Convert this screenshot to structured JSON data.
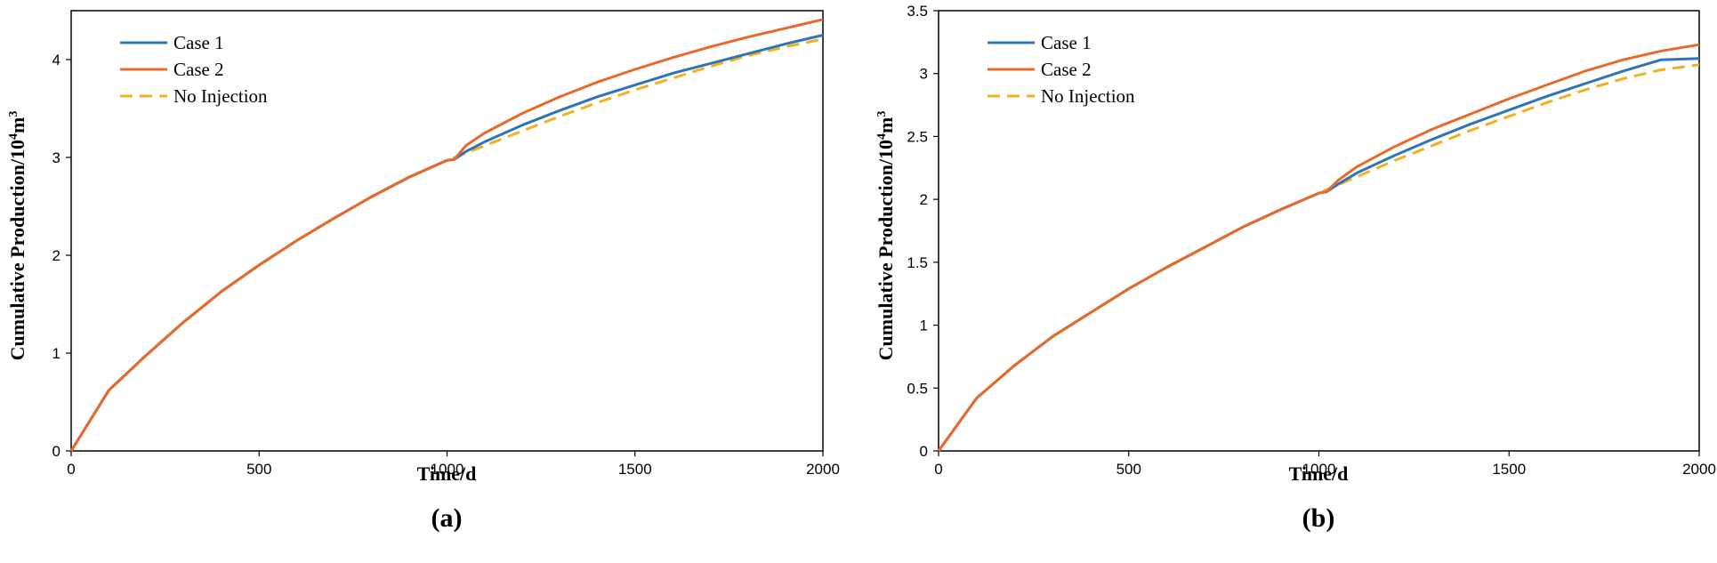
{
  "chart_data": [
    {
      "type": "line",
      "panel_label": "(a)",
      "xlabel": "Time/d",
      "ylabel_main": "Cumulative Production/10",
      "ylabel_sup1": "4",
      "ylabel_mid": "m",
      "ylabel_sup2": "3",
      "xlim": [
        0,
        2000
      ],
      "ylim": [
        0,
        4.5
      ],
      "xticks": [
        0,
        500,
        1000,
        1500,
        2000
      ],
      "xtick_labels": [
        "0",
        "500",
        "1000",
        "1500",
        "2000"
      ],
      "yticks": [
        0,
        1,
        2,
        3,
        4
      ],
      "ytick_labels": [
        "0",
        "1",
        "2",
        "3",
        "4"
      ],
      "grid": false,
      "legend_position": "top-left",
      "series": [
        {
          "name": "Case 1",
          "color": "#2E75B6",
          "dash": "solid",
          "x": [
            0,
            100,
            200,
            300,
            400,
            500,
            600,
            700,
            800,
            900,
            1000,
            1020,
            1050,
            1100,
            1200,
            1300,
            1400,
            1500,
            1600,
            1700,
            1800,
            1900,
            2000
          ],
          "y": [
            0,
            0.62,
            0.98,
            1.32,
            1.63,
            1.9,
            2.15,
            2.38,
            2.6,
            2.8,
            2.97,
            2.98,
            3.06,
            3.16,
            3.33,
            3.48,
            3.62,
            3.74,
            3.86,
            3.96,
            4.06,
            4.16,
            4.25
          ]
        },
        {
          "name": "Case 2",
          "color": "#E8692C",
          "dash": "solid",
          "x": [
            0,
            100,
            200,
            300,
            400,
            500,
            600,
            700,
            800,
            900,
            1000,
            1020,
            1050,
            1100,
            1200,
            1300,
            1400,
            1500,
            1600,
            1700,
            1800,
            1900,
            2000
          ],
          "y": [
            0,
            0.62,
            0.98,
            1.32,
            1.63,
            1.9,
            2.15,
            2.38,
            2.6,
            2.8,
            2.97,
            2.98,
            3.12,
            3.25,
            3.45,
            3.62,
            3.77,
            3.9,
            4.02,
            4.13,
            4.23,
            4.32,
            4.41
          ]
        },
        {
          "name": "No Injection",
          "color": "#F2B01E",
          "dash": "dashed",
          "x": [
            0,
            100,
            200,
            300,
            400,
            500,
            600,
            700,
            800,
            900,
            1000,
            1100,
            1200,
            1300,
            1400,
            1500,
            1600,
            1700,
            1800,
            1900,
            2000
          ],
          "y": [
            0,
            0.62,
            0.98,
            1.32,
            1.63,
            1.9,
            2.15,
            2.38,
            2.6,
            2.8,
            2.97,
            3.12,
            3.27,
            3.42,
            3.56,
            3.69,
            3.81,
            3.93,
            4.04,
            4.13,
            4.21
          ]
        }
      ]
    },
    {
      "type": "line",
      "panel_label": "(b)",
      "xlabel": "Time/d",
      "ylabel_main": "Cumulative Production/10",
      "ylabel_sup1": "4",
      "ylabel_mid": "m",
      "ylabel_sup2": "3",
      "xlim": [
        0,
        2000
      ],
      "ylim": [
        0,
        3.5
      ],
      "xticks": [
        0,
        500,
        1000,
        1500,
        2000
      ],
      "xtick_labels": [
        "0",
        "500",
        "1000",
        "1500",
        "2000"
      ],
      "yticks": [
        0,
        0.5,
        1,
        1.5,
        2,
        2.5,
        3,
        3.5
      ],
      "ytick_labels": [
        "0",
        "0.5",
        "1",
        "1.5",
        "2",
        "2.5",
        "3",
        "3.5"
      ],
      "grid": false,
      "legend_position": "top-left",
      "series": [
        {
          "name": "Case 1",
          "color": "#2E75B6",
          "dash": "solid",
          "x": [
            0,
            100,
            200,
            300,
            400,
            500,
            600,
            700,
            800,
            900,
            1000,
            1020,
            1050,
            1100,
            1200,
            1300,
            1400,
            1500,
            1600,
            1700,
            1800,
            1900,
            2000
          ],
          "y": [
            0,
            0.42,
            0.68,
            0.91,
            1.1,
            1.29,
            1.46,
            1.62,
            1.78,
            1.92,
            2.05,
            2.06,
            2.12,
            2.21,
            2.35,
            2.48,
            2.6,
            2.71,
            2.82,
            2.92,
            3.02,
            3.11,
            3.12
          ]
        },
        {
          "name": "Case 2",
          "color": "#E8692C",
          "dash": "solid",
          "x": [
            0,
            100,
            200,
            300,
            400,
            500,
            600,
            700,
            800,
            900,
            1000,
            1020,
            1050,
            1100,
            1200,
            1300,
            1400,
            1500,
            1600,
            1700,
            1800,
            1900,
            2000
          ],
          "y": [
            0,
            0.42,
            0.68,
            0.91,
            1.1,
            1.29,
            1.46,
            1.62,
            1.78,
            1.92,
            2.05,
            2.06,
            2.15,
            2.26,
            2.42,
            2.56,
            2.68,
            2.8,
            2.91,
            3.02,
            3.11,
            3.18,
            3.23
          ]
        },
        {
          "name": "No Injection",
          "color": "#F2B01E",
          "dash": "dashed",
          "x": [
            0,
            100,
            200,
            300,
            400,
            500,
            600,
            700,
            800,
            900,
            1000,
            1100,
            1200,
            1300,
            1400,
            1500,
            1600,
            1700,
            1800,
            1900,
            2000
          ],
          "y": [
            0,
            0.42,
            0.68,
            0.91,
            1.1,
            1.29,
            1.46,
            1.62,
            1.78,
            1.92,
            2.05,
            2.18,
            2.31,
            2.43,
            2.55,
            2.66,
            2.77,
            2.87,
            2.96,
            3.03,
            3.07
          ]
        }
      ]
    }
  ]
}
